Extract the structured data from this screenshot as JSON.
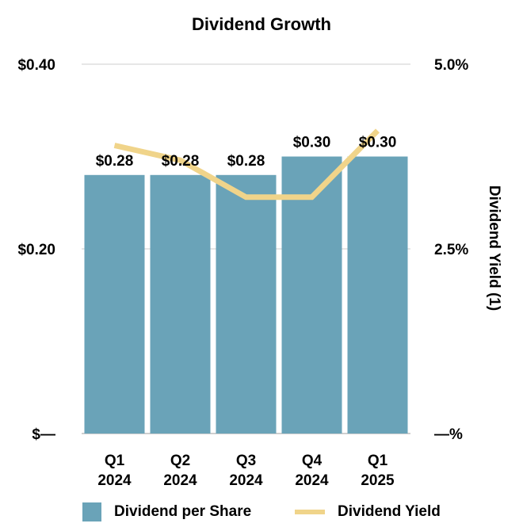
{
  "chart_data": {
    "type": "bar",
    "title": "Dividend Growth",
    "categories": [
      {
        "line1": "Q1",
        "line2": "2024"
      },
      {
        "line1": "Q2",
        "line2": "2024"
      },
      {
        "line1": "Q3",
        "line2": "2024"
      },
      {
        "line1": "Q4",
        "line2": "2024"
      },
      {
        "line1": "Q1",
        "line2": "2025"
      }
    ],
    "series": [
      {
        "name": "Dividend per Share",
        "type": "bar",
        "axis": "left",
        "color": "#6aa3b8",
        "values": [
          0.28,
          0.28,
          0.28,
          0.3,
          0.3
        ],
        "labels": [
          "$0.28",
          "$0.28",
          "$0.28",
          "$0.30",
          "$0.30"
        ]
      },
      {
        "name": "Dividend Yield",
        "type": "line",
        "axis": "right",
        "color": "#f0d48a",
        "values": [
          3.9,
          3.7,
          3.2,
          3.2,
          4.1
        ]
      }
    ],
    "y_left": {
      "min": 0,
      "max": 0.4,
      "ticks": [
        {
          "value": 0,
          "label": "$—"
        },
        {
          "value": 0.2,
          "label": "$0.20"
        },
        {
          "value": 0.4,
          "label": "$0.40"
        }
      ]
    },
    "y_right": {
      "min": 0,
      "max": 5.0,
      "label": "Dividend Yield (1)",
      "ticks": [
        {
          "value": 0,
          "label": "—%"
        },
        {
          "value": 2.5,
          "label": "2.5%"
        },
        {
          "value": 5.0,
          "label": "5.0%"
        }
      ]
    },
    "grid": true,
    "legend_position": "bottom"
  }
}
